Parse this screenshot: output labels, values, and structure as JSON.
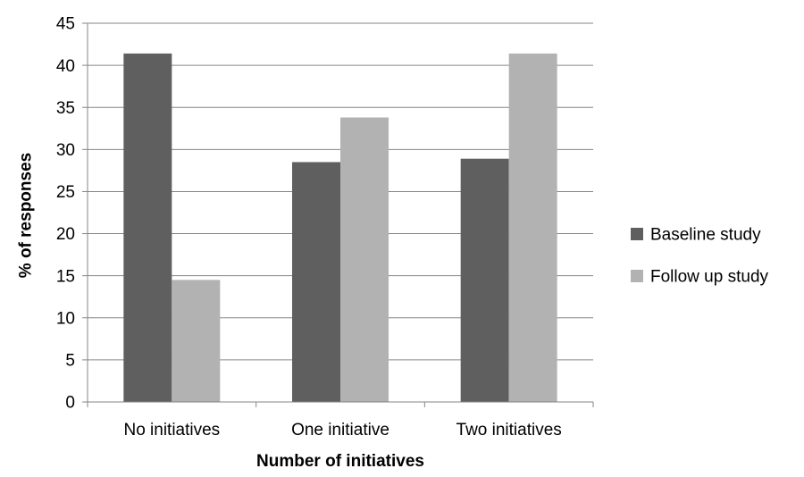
{
  "chart_data": {
    "type": "bar",
    "title": "",
    "xlabel": "Number of initiatives",
    "ylabel": "% of responses",
    "categories": [
      "No initiatives",
      "One initiative",
      "Two initiatives"
    ],
    "series": [
      {
        "name": "Baseline study",
        "values": [
          41.4,
          28.5,
          28.9
        ],
        "color": "#5f5f5f"
      },
      {
        "name": "Follow up study",
        "values": [
          14.5,
          33.8,
          41.4
        ],
        "color": "#b2b2b2"
      }
    ],
    "ylim": [
      0,
      45
    ],
    "yticks": [
      "0",
      "5",
      "10",
      "15",
      "20",
      "25",
      "30",
      "35",
      "40",
      "45"
    ],
    "grid": true,
    "legend_position": "right"
  }
}
